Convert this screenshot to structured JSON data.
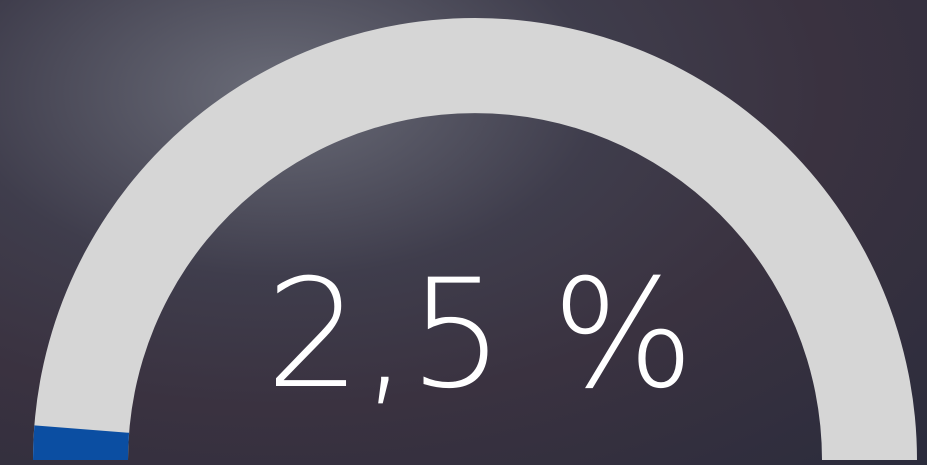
{
  "chart_data": {
    "type": "gauge",
    "values": [
      2.5
    ],
    "value_labels": [
      "2,5 %"
    ],
    "ylim": [
      0,
      100
    ],
    "color": "#0b4ea2",
    "track_color": "#d6d6d6"
  }
}
